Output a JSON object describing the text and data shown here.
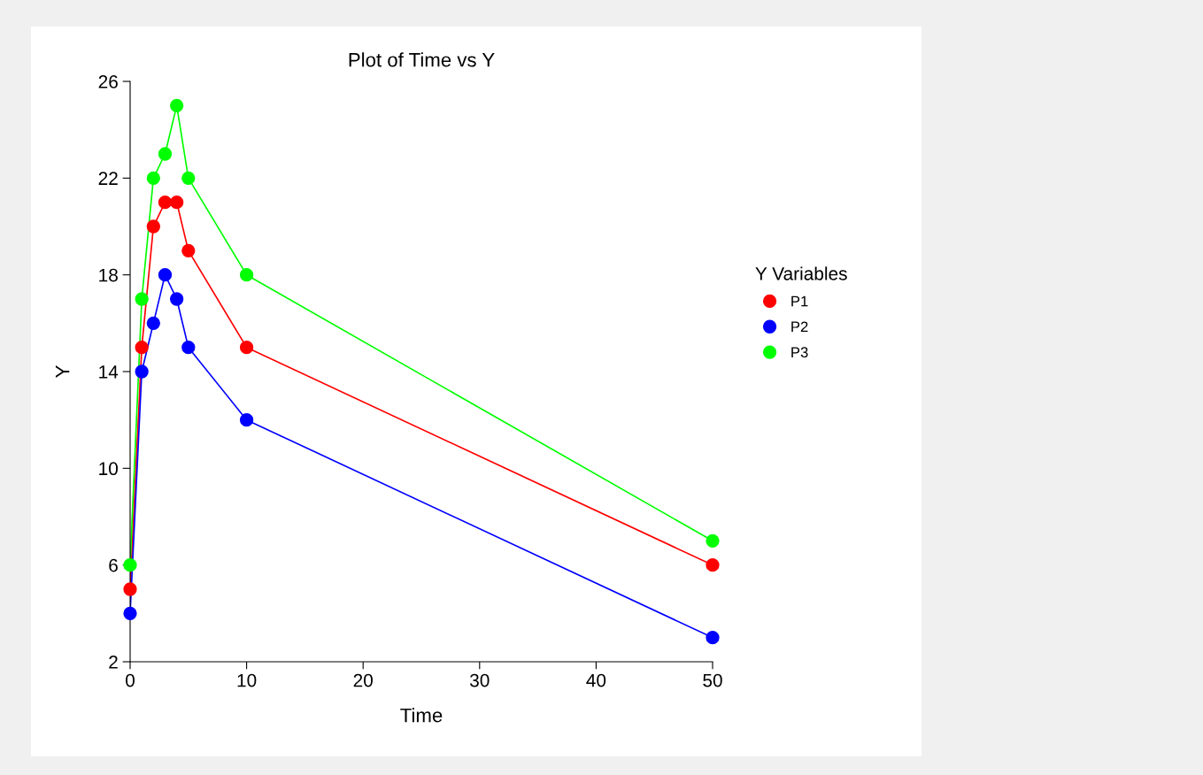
{
  "chart_data": {
    "type": "line",
    "title": "Plot of Time vs Y",
    "xlabel": "Time",
    "ylabel": "Y",
    "legend_title": "Y Variables",
    "x": [
      0,
      1,
      2,
      3,
      4,
      5,
      10,
      50
    ],
    "series": [
      {
        "name": "P1",
        "color": "#ff0000",
        "values": [
          5,
          15,
          20,
          21,
          21,
          19,
          15,
          6
        ]
      },
      {
        "name": "P2",
        "color": "#0000ff",
        "values": [
          4,
          14,
          16,
          18,
          17,
          15,
          12,
          3
        ]
      },
      {
        "name": "P3",
        "color": "#00ff00",
        "values": [
          6,
          17,
          22,
          23,
          25,
          22,
          18,
          7
        ]
      }
    ],
    "xlim": [
      0,
      50
    ],
    "xticks": [
      0,
      10,
      20,
      30,
      40,
      50
    ],
    "ylim": [
      2,
      26
    ],
    "yticks": [
      2,
      6,
      10,
      14,
      18,
      22,
      26
    ],
    "grid": false,
    "legend": "right",
    "marker": "circle",
    "line_style": "solid"
  }
}
